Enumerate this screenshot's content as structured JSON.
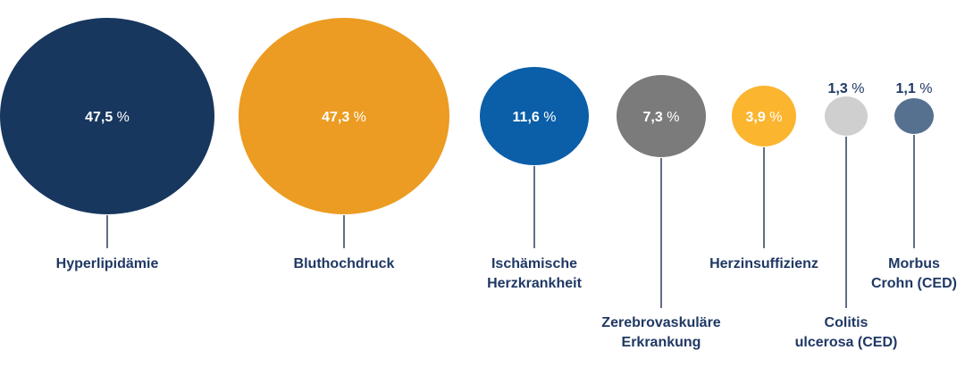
{
  "chart_data": {
    "type": "bubble",
    "title": "",
    "unit": "%",
    "items": [
      {
        "label": [
          "Hyperlipidämie"
        ],
        "value": 47.5,
        "value_text": "47,5",
        "color": "#17375e",
        "text_color": "#ffffff"
      },
      {
        "label": [
          "Bluthochdruck"
        ],
        "value": 47.3,
        "value_text": "47,3",
        "color": "#ec9c22",
        "text_color": "#ffffff"
      },
      {
        "label": [
          "Ischämische",
          "Herzkrankheit"
        ],
        "value": 11.6,
        "value_text": "11,6",
        "color": "#0b5ea8",
        "text_color": "#ffffff"
      },
      {
        "label": [
          "Zerebrovaskuläre",
          "Erkrankung"
        ],
        "value": 7.3,
        "value_text": "7,3",
        "color": "#7b7b7b",
        "text_color": "#ffffff"
      },
      {
        "label": [
          "Herzinsuffizienz"
        ],
        "value": 3.9,
        "value_text": "3,9",
        "color": "#fbb52f",
        "text_color": "#ffffff"
      },
      {
        "label": [
          "Colitis",
          "ulcerosa (CED)"
        ],
        "value": 1.3,
        "value_text": "1,3",
        "color": "#cfcfcf",
        "text_color": "#1f3864"
      },
      {
        "label": [
          "Morbus",
          "Crohn (CED)"
        ],
        "value": 1.1,
        "value_text": "1,1",
        "color": "#56708f",
        "text_color": "#1f3864"
      }
    ]
  }
}
